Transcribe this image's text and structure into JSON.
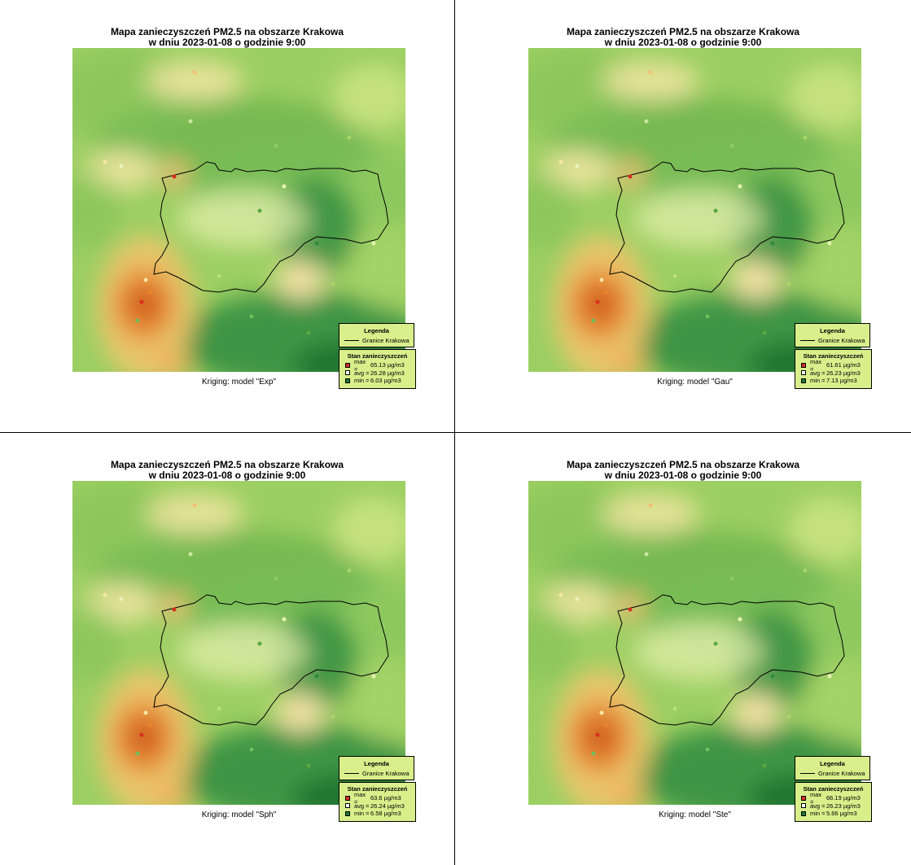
{
  "panels": [
    {
      "title_line1": "Mapa zanieczyszczeń PM2.5 na obszarze Krakowa",
      "title_line2": "w dniu 2023-01-08 o godzinie 9:00",
      "caption": "Kriging: model \"Exp\"",
      "legend_title": "Legenda",
      "legend_boundary": "Granice Krakowa",
      "status_title": "Stan zanieczyszczeń",
      "max_label": "max =",
      "max_value": "65.13 µg/m3",
      "avg_label": "avg =",
      "avg_value": "26.28 µg/m3",
      "min_label": "min =",
      "min_value": "6.03 µg/m3"
    },
    {
      "title_line1": "Mapa zanieczyszczeń PM2.5 na obszarze Krakowa",
      "title_line2": "w dniu 2023-01-08 o godzinie 9:00",
      "caption": "Kriging: model \"Gau\"",
      "legend_title": "Legenda",
      "legend_boundary": "Granice Krakowa",
      "status_title": "Stan zanieczyszczeń",
      "max_label": "max =",
      "max_value": "61.61 µg/m3",
      "avg_label": "avg =",
      "avg_value": "26.23 µg/m3",
      "min_label": "min =",
      "min_value": "7.13 µg/m3"
    },
    {
      "title_line1": "Mapa zanieczyszczeń PM2.5 na obszarze Krakowa",
      "title_line2": "w dniu 2023-01-08 o godzinie 9:00",
      "caption": "Kriging: model \"Sph\"",
      "legend_title": "Legenda",
      "legend_boundary": "Granice Krakowa",
      "status_title": "Stan zanieczyszczeń",
      "max_label": "max =",
      "max_value": "63.6 µg/m3",
      "avg_label": "avg =",
      "avg_value": "26.24 µg/m3",
      "min_label": "min =",
      "min_value": "6.58 µg/m3"
    },
    {
      "title_line1": "Mapa zanieczyszczeń PM2.5 na obszarze Krakowa",
      "title_line2": "w dniu 2023-01-08 o godzinie 9:00",
      "caption": "Kriging: model \"Ste\"",
      "legend_title": "Legenda",
      "legend_boundary": "Granice Krakowa",
      "status_title": "Stan zanieczyszczeń",
      "max_label": "max =",
      "max_value": "66.19 µg/m3",
      "avg_label": "avg =",
      "avg_value": "26.23 µg/m3",
      "min_label": "min =",
      "min_value": "5.66 µg/m3"
    }
  ],
  "colors": {
    "max": "#d7301f",
    "avg": "#ffffff",
    "min": "#1a7a2e",
    "legend_bg": "#d9ef8b",
    "base_green": "#9ccf62"
  }
}
